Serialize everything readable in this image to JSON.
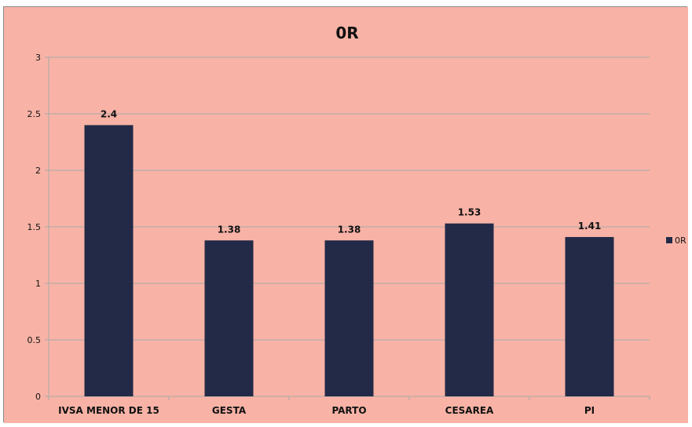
{
  "chart_data": {
    "type": "bar",
    "title": "0R",
    "categories": [
      "IVSA MENOR DE 15",
      "GESTA",
      "PARTO",
      "CESAREA",
      "PI"
    ],
    "series": [
      {
        "name": "0R",
        "values": [
          2.4,
          1.38,
          1.38,
          1.53,
          1.41
        ]
      }
    ],
    "data_labels": [
      "2.4",
      "1.38",
      "1.38",
      "1.53",
      "1.41"
    ],
    "ylim": [
      0,
      3
    ],
    "yticks": [
      0,
      0.5,
      1,
      1.5,
      2,
      2.5,
      3
    ],
    "ytick_labels": [
      "0",
      "0.5",
      "1",
      "1.5",
      "2",
      "2.5",
      "3"
    ],
    "grid": true,
    "legend": "right",
    "colors": {
      "background": "#F8B3A6",
      "bar": "#232A48",
      "grid": "#A8A8A8",
      "text": "#111111"
    }
  }
}
